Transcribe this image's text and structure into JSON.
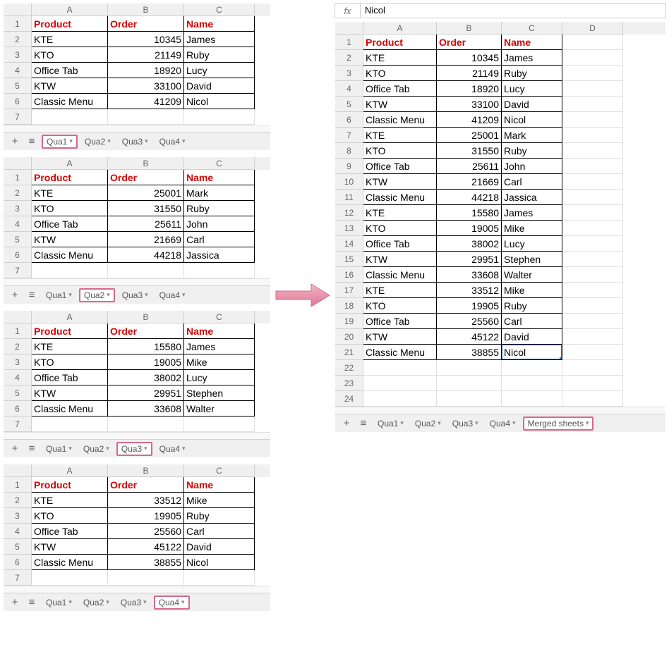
{
  "colors": {
    "header_text": "#d80000",
    "highlight_border": "#d46a8a",
    "selection": "#1a73e8",
    "arrow": "#e88aa0"
  },
  "headers": {
    "product": "Product",
    "order": "Order",
    "name": "Name"
  },
  "col_labels": [
    "A",
    "B",
    "C",
    "D"
  ],
  "fx": {
    "label": "fx",
    "value": "Nicol"
  },
  "tabs": [
    "Qua1",
    "Qua2",
    "Qua3",
    "Qua4"
  ],
  "merged_tab": "Merged sheets",
  "left_sheets": [
    {
      "active": "Qua1",
      "rows": [
        [
          "KTE",
          "10345",
          "James"
        ],
        [
          "KTO",
          "21149",
          "Ruby"
        ],
        [
          "Office Tab",
          "18920",
          "Lucy"
        ],
        [
          "KTW",
          "33100",
          "David"
        ],
        [
          "Classic Menu",
          "41209",
          "Nicol"
        ]
      ]
    },
    {
      "active": "Qua2",
      "rows": [
        [
          "KTE",
          "25001",
          "Mark"
        ],
        [
          "KTO",
          "31550",
          "Ruby"
        ],
        [
          "Office Tab",
          "25611",
          "John"
        ],
        [
          "KTW",
          "21669",
          "Carl"
        ],
        [
          "Classic Menu",
          "44218",
          "Jassica"
        ]
      ]
    },
    {
      "active": "Qua3",
      "rows": [
        [
          "KTE",
          "15580",
          "James"
        ],
        [
          "KTO",
          "19005",
          "Mike"
        ],
        [
          "Office Tab",
          "38002",
          "Lucy"
        ],
        [
          "KTW",
          "29951",
          "Stephen"
        ],
        [
          "Classic Menu",
          "33608",
          "Walter"
        ]
      ]
    },
    {
      "active": "Qua4",
      "rows": [
        [
          "KTE",
          "33512",
          "Mike"
        ],
        [
          "KTO",
          "19905",
          "Ruby"
        ],
        [
          "Office Tab",
          "25560",
          "Carl"
        ],
        [
          "KTW",
          "45122",
          "David"
        ],
        [
          "Classic Menu",
          "38855",
          "Nicol"
        ]
      ]
    }
  ],
  "merged_rows": [
    [
      "KTE",
      "10345",
      "James"
    ],
    [
      "KTO",
      "21149",
      "Ruby"
    ],
    [
      "Office Tab",
      "18920",
      "Lucy"
    ],
    [
      "KTW",
      "33100",
      "David"
    ],
    [
      "Classic Menu",
      "41209",
      "Nicol"
    ],
    [
      "KTE",
      "25001",
      "Mark"
    ],
    [
      "KTO",
      "31550",
      "Ruby"
    ],
    [
      "Office Tab",
      "25611",
      "John"
    ],
    [
      "KTW",
      "21669",
      "Carl"
    ],
    [
      "Classic Menu",
      "44218",
      "Jassica"
    ],
    [
      "KTE",
      "15580",
      "James"
    ],
    [
      "KTO",
      "19005",
      "Mike"
    ],
    [
      "Office Tab",
      "38002",
      "Lucy"
    ],
    [
      "KTW",
      "29951",
      "Stephen"
    ],
    [
      "Classic Menu",
      "33608",
      "Walter"
    ],
    [
      "KTE",
      "33512",
      "Mike"
    ],
    [
      "KTO",
      "19905",
      "Ruby"
    ],
    [
      "Office Tab",
      "25560",
      "Carl"
    ],
    [
      "KTW",
      "45122",
      "David"
    ],
    [
      "Classic Menu",
      "38855",
      "Nicol"
    ]
  ],
  "merged_selection": {
    "row": 21,
    "col": "C"
  },
  "left_widths": {
    "A": 108,
    "B": 108,
    "C": 100
  },
  "right_widths": {
    "A": 104,
    "B": 92,
    "C": 86,
    "D": 86
  }
}
